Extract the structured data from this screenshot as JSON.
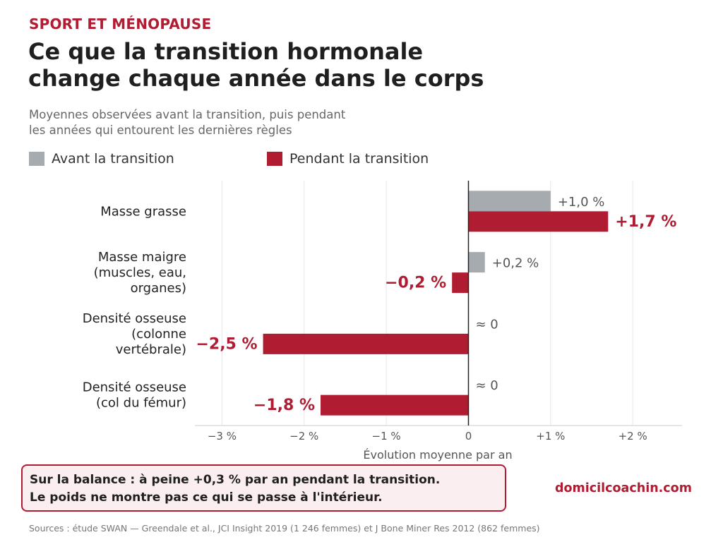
{
  "header": {
    "kicker": "SPORT ET MÉNOPAUSE",
    "title_line1": "Ce que la transition hormonale",
    "title_line2": "change chaque année dans le corps",
    "subtitle_line1": "Moyennes observées avant la transition, puis pendant",
    "subtitle_line2": "les années qui entourent les dernières règles"
  },
  "legend": [
    {
      "label": "Avant la transition",
      "color": "#a6abb0"
    },
    {
      "label": "Pendant la transition",
      "color": "#b01c32"
    }
  ],
  "chart_data": {
    "type": "bar",
    "orientation": "horizontal",
    "categories": [
      [
        "Masse grasse"
      ],
      [
        "Masse maigre",
        "(muscles, eau,",
        "organes)"
      ],
      [
        "Densité osseuse",
        "(colonne",
        "vertébrale)"
      ],
      [
        "Densité osseuse",
        "(col du fémur)"
      ]
    ],
    "series": [
      {
        "name": "Avant la transition",
        "color": "#a6abb0",
        "values": [
          1.0,
          0.2,
          0,
          0
        ],
        "labels": [
          "+1,0 %",
          "+0,2 %",
          "≈ 0",
          "≈ 0"
        ]
      },
      {
        "name": "Pendant la transition",
        "color": "#b01c32",
        "values": [
          1.7,
          -0.2,
          -2.5,
          -1.8
        ],
        "labels": [
          "+1,7 %",
          "−0,2 %",
          "−2,5 %",
          "−1,8 %"
        ]
      }
    ],
    "xlim": [
      -3.33,
      2.6
    ],
    "xticks": [
      -3,
      -2,
      -1,
      0,
      1,
      2
    ],
    "xtick_labels": [
      "−3 %",
      "−2 %",
      "−1 %",
      "0",
      "+1 %",
      "+2 %"
    ],
    "xlabel": "Évolution moyenne par an",
    "grid": "vertical"
  },
  "note": {
    "line1": "Sur la balance : à peine +0,3 % par an pendant la transition.",
    "line2": "Le poids ne montre pas ce qui se passe à l'intérieur."
  },
  "site": "domicilcoachin.com",
  "sources": "Sources : étude SWAN — Greendale et al., JCI Insight 2019 (1 246 femmes) et J Bone Miner Res 2012 (862 femmes)"
}
